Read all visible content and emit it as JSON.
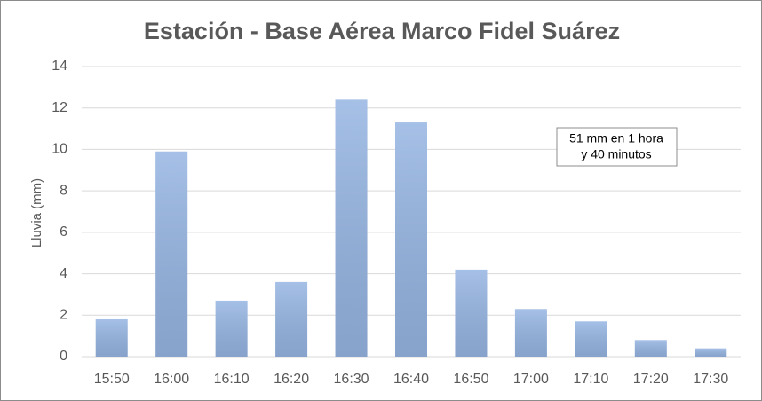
{
  "chart_data": {
    "type": "bar",
    "title": "Estación - Base Aérea Marco Fidel Suárez",
    "y_label": "Lluvia (mm)",
    "annotation": [
      "51 mm en 1 hora",
      "y 40 minutos"
    ],
    "categories": [
      "15:50",
      "16:00",
      "16:10",
      "16:20",
      "16:30",
      "16:40",
      "16:50",
      "17:00",
      "17:10",
      "17:20",
      "17:30"
    ],
    "values": [
      1.8,
      9.9,
      2.7,
      3.6,
      12.4,
      11.3,
      4.2,
      2.3,
      1.7,
      0.8,
      0.4
    ],
    "color": "#96b5e2",
    "ylim": [
      0,
      14
    ],
    "yticks": [
      0,
      2,
      4,
      6,
      8,
      10,
      12,
      14
    ],
    "grid": true
  }
}
